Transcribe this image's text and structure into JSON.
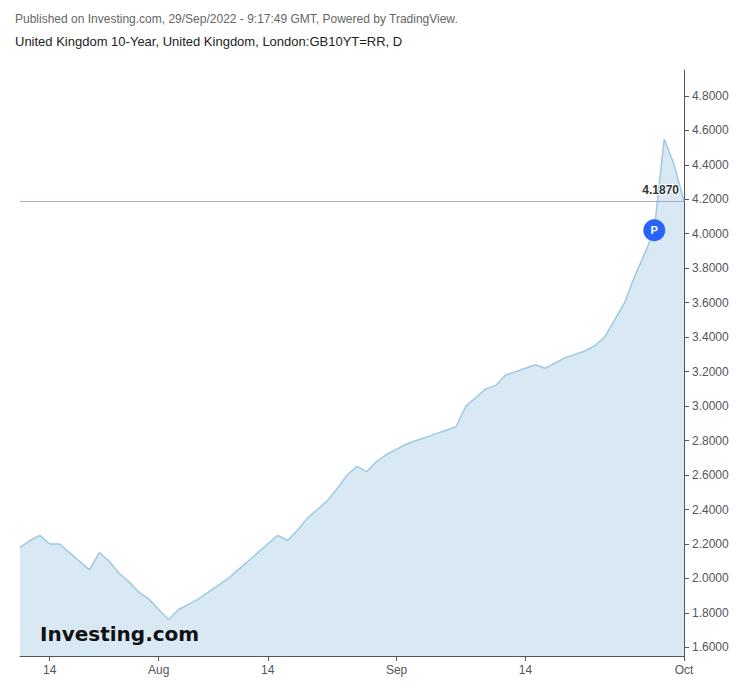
{
  "chart_data": {
    "type": "area",
    "title": "Published on Investing.com, 29/Sep/2022 - 9:17:49 GMT, Powered by TradingView.",
    "subtitle": "United Kingdom 10-Year, United Kingdom, London:GB10YT=RR, D",
    "categories": [
      null,
      null,
      null,
      "14",
      null,
      null,
      null,
      null,
      null,
      null,
      null,
      null,
      null,
      null,
      "Aug",
      null,
      null,
      null,
      null,
      null,
      null,
      null,
      null,
      null,
      null,
      "14",
      null,
      null,
      null,
      null,
      null,
      null,
      null,
      null,
      null,
      null,
      null,
      null,
      "Sep",
      null,
      null,
      null,
      null,
      null,
      null,
      null,
      null,
      null,
      null,
      null,
      null,
      "14",
      null,
      null,
      null,
      null,
      null,
      null,
      null,
      null,
      null,
      null,
      null,
      null,
      null,
      null,
      null,
      "Oct"
    ],
    "values": [
      2.18,
      2.22,
      2.25,
      2.2,
      2.2,
      2.15,
      2.1,
      2.05,
      2.15,
      2.1,
      2.03,
      1.98,
      1.92,
      1.88,
      1.82,
      1.76,
      1.82,
      1.85,
      1.88,
      1.92,
      1.96,
      2.0,
      2.05,
      2.1,
      2.15,
      2.2,
      2.25,
      2.22,
      2.28,
      2.35,
      2.4,
      2.45,
      2.52,
      2.6,
      2.65,
      2.62,
      2.68,
      2.72,
      2.75,
      2.78,
      2.8,
      2.82,
      2.84,
      2.86,
      2.88,
      3.0,
      3.05,
      3.1,
      3.12,
      3.18,
      3.2,
      3.22,
      3.24,
      3.22,
      3.25,
      3.28,
      3.3,
      3.32,
      3.35,
      3.4,
      3.5,
      3.6,
      3.75,
      3.88,
      4.02,
      4.55,
      4.4,
      4.187
    ],
    "color": "#9ec9e2",
    "ylim": [
      1.55,
      4.95
    ],
    "yticks": [
      {
        "value": 1.6,
        "label": "1.6000"
      },
      {
        "value": 1.8,
        "label": "1.8000"
      },
      {
        "value": 2.0,
        "label": "2.0000"
      },
      {
        "value": 2.2,
        "label": "2.2000"
      },
      {
        "value": 2.4,
        "label": "2.4000"
      },
      {
        "value": 2.6,
        "label": "2.6000"
      },
      {
        "value": 2.8,
        "label": "2.8000"
      },
      {
        "value": 3.0,
        "label": "3.0000"
      },
      {
        "value": 3.2,
        "label": "3.2000"
      },
      {
        "value": 3.4,
        "label": "3.4000"
      },
      {
        "value": 3.6,
        "label": "3.6000"
      },
      {
        "value": 3.8,
        "label": "3.8000"
      },
      {
        "value": 4.0,
        "label": "4.0000"
      },
      {
        "value": 4.2,
        "label": "4.2000"
      },
      {
        "value": 4.4,
        "label": "4.4000"
      },
      {
        "value": 4.6,
        "label": "4.6000"
      },
      {
        "value": 4.8,
        "label": "4.8000"
      }
    ],
    "grid": false,
    "hline": {
      "y": 4.187,
      "label": "4.1870"
    },
    "annotations": [
      {
        "text": "P",
        "index": 64,
        "y": 4.02,
        "color": "#2962ff"
      },
      {
        "text": "Investing.com"
      }
    ]
  }
}
